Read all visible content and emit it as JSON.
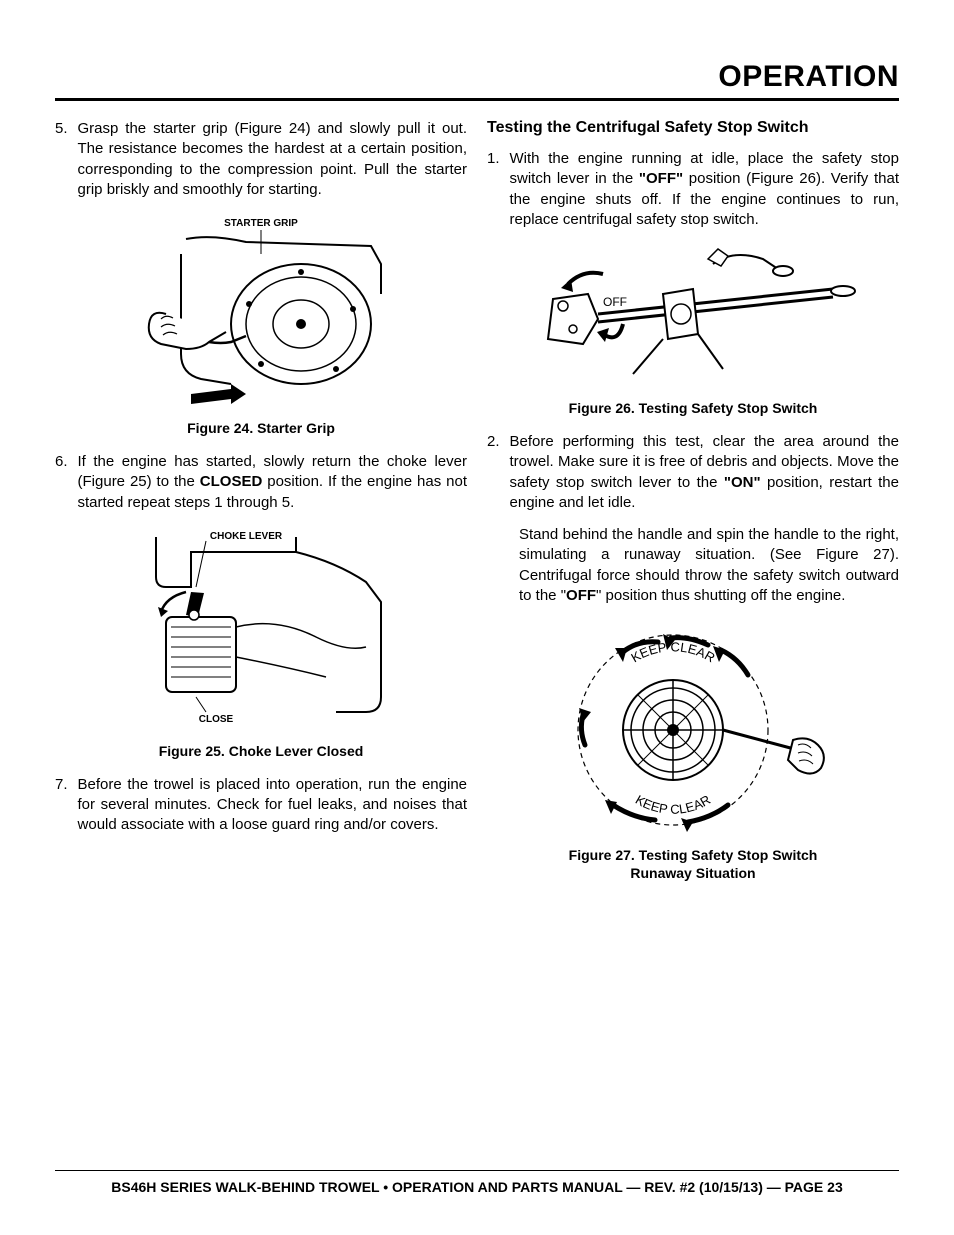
{
  "header": {
    "title": "OPERATION"
  },
  "left": {
    "steps": [
      {
        "num": "5.",
        "text": "Grasp the starter grip (Figure 24) and slowly pull it out. The resistance becomes the hardest at a certain position, corresponding to the compression point. Pull the starter grip briskly and smoothly for starting."
      },
      {
        "num": "6.",
        "pre": "If the engine has started, slowly return the choke lever (Figure 25) to the ",
        "bold": "CLOSED",
        "post": " position. If the engine has not started repeat steps 1 through 5."
      },
      {
        "num": "7.",
        "text": "Before the trowel is placed into operation, run the engine for several minutes. Check for fuel leaks, and noises that would associate with a loose guard ring and/or covers."
      }
    ],
    "fig24": {
      "caption": "Figure 24. Starter Grip",
      "label": "STARTER GRIP"
    },
    "fig25": {
      "caption": "Figure 25. Choke Lever Closed",
      "label_top": "CHOKE LEVER",
      "label_bottom": "CLOSE"
    }
  },
  "right": {
    "heading": "Testing the Centrifugal Safety Stop Switch",
    "steps": [
      {
        "num": "1.",
        "p1": "With the engine running at idle, place the safety stop switch lever in the ",
        "b1": "\"OFF\"",
        "p2": " position (Figure 26). Verify that the engine shuts off. If the engine continues to run, replace centrifugal safety stop switch."
      },
      {
        "num": "2.",
        "p1": "Before performing this test, clear the area around the trowel. Make sure it is free of debris and objects. Move the safety stop switch lever to the ",
        "b1": "\"ON\"",
        "p2": " position, restart the engine and let idle."
      }
    ],
    "sub": {
      "p1": "Stand behind the handle and spin the handle to the right, simulating a runaway situation. (See Figure 27). Centrifugal force should throw the safety switch outward to the \"",
      "b1": "OFF",
      "p2": "\" position thus shutting off the engine."
    },
    "fig26": {
      "caption": "Figure 26. Testing Safety Stop Switch",
      "label": "OFF"
    },
    "fig27": {
      "caption": "Figure 27. Testing Safety Stop Switch Runaway Situation",
      "label": "KEEP CLEAR"
    }
  },
  "footer": "BS46H SERIES WALK-BEHIND TROWEL • OPERATION AND PARTS MANUAL — REV. #2 (10/15/13) — PAGE 23",
  "colors": {
    "text": "#000000",
    "bg": "#ffffff",
    "rule": "#000000"
  },
  "fonts": {
    "body_size": 15,
    "caption_size": 14,
    "header_size": 30,
    "heading_size": 16
  }
}
